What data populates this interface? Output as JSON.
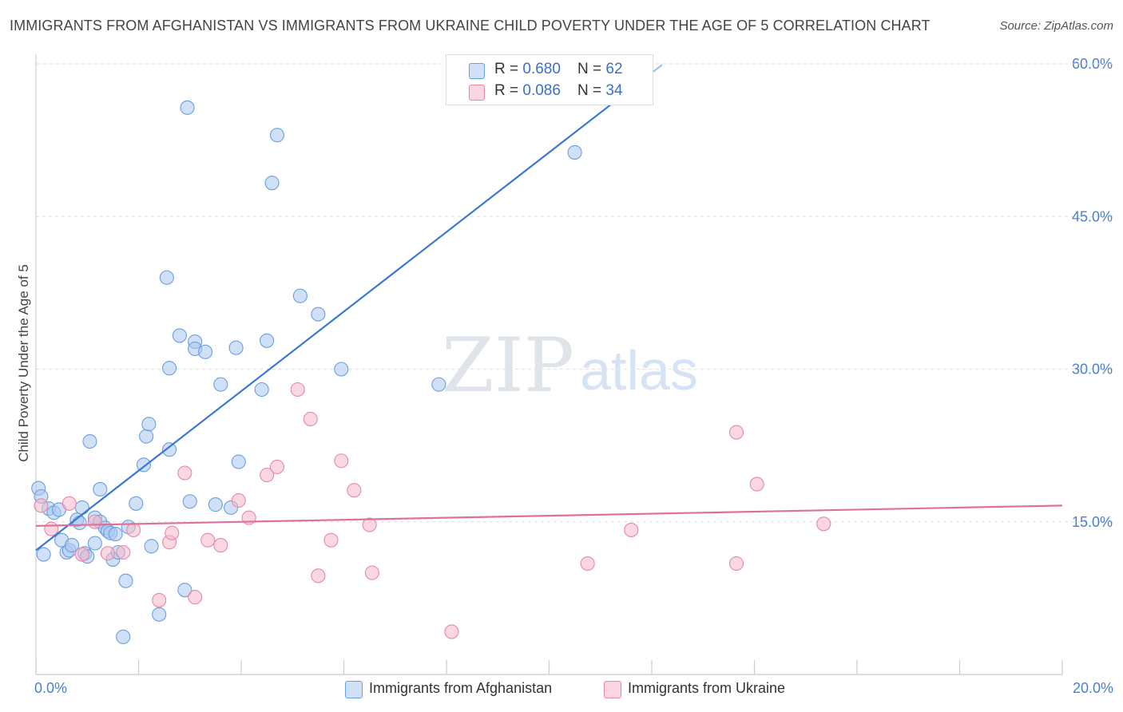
{
  "title": "IMMIGRANTS FROM AFGHANISTAN VS IMMIGRANTS FROM UKRAINE CHILD POVERTY UNDER THE AGE OF 5 CORRELATION CHART",
  "source": "Source: ZipAtlas.com",
  "watermark": {
    "zip": "ZIP",
    "atlas": "atlas"
  },
  "legend_top": {
    "rows": [
      {
        "r_label": "R = ",
        "r_value": "0.680",
        "n_label": "N = ",
        "n_value": "62",
        "color": "#a9c8f0"
      },
      {
        "r_label": "R = ",
        "r_value": "0.086",
        "n_label": "N = ",
        "n_value": "34",
        "color": "#f6b6c8"
      }
    ]
  },
  "colors": {
    "afghanistan_fill": "#a9c8f0",
    "afghanistan_stroke": "#6a9ee0",
    "afghanistan_line": "#3a78d4",
    "ukraine_fill": "#f6b6c8",
    "ukraine_stroke": "#e48aa6",
    "ukraine_line": "#e0709a",
    "grid": "#dddddd",
    "tick_text": "#4a7fd0"
  },
  "chart_data": {
    "type": "scatter",
    "title": "IMMIGRANTS FROM AFGHANISTAN VS IMMIGRANTS FROM UKRAINE CHILD POVERTY UNDER THE AGE OF 5 CORRELATION CHART",
    "xlabel": "",
    "ylabel": "Child Poverty Under the Age of 5",
    "xlim": [
      0,
      20
    ],
    "ylim": [
      0,
      60
    ],
    "x_tick_labels": [
      "0.0%",
      "20.0%"
    ],
    "y_ticks": [
      15,
      30,
      45,
      60
    ],
    "y_tick_labels": [
      "15.0%",
      "30.0%",
      "45.0%",
      "60.0%"
    ],
    "grid": true,
    "legend_position": "bottom",
    "series": [
      {
        "name": "Immigrants from Afghanistan",
        "r": 0.68,
        "n": 62,
        "trend": {
          "x": [
            0,
            12.2
          ],
          "y": [
            12.2,
            59.9
          ],
          "dashed_from_x": 11.2
        },
        "points": [
          [
            0.05,
            18.3
          ],
          [
            0.1,
            17.5
          ],
          [
            0.15,
            11.8
          ],
          [
            0.25,
            16.3
          ],
          [
            0.35,
            15.9
          ],
          [
            0.45,
            16.2
          ],
          [
            0.5,
            13.2
          ],
          [
            0.6,
            12.0
          ],
          [
            0.65,
            12.2
          ],
          [
            0.7,
            12.7
          ],
          [
            0.8,
            15.2
          ],
          [
            0.85,
            14.9
          ],
          [
            0.9,
            16.4
          ],
          [
            0.95,
            11.9
          ],
          [
            1.0,
            11.6
          ],
          [
            1.05,
            22.9
          ],
          [
            1.15,
            15.4
          ],
          [
            1.15,
            12.9
          ],
          [
            1.25,
            15.0
          ],
          [
            1.25,
            18.2
          ],
          [
            1.35,
            14.4
          ],
          [
            1.4,
            14.1
          ],
          [
            1.45,
            13.9
          ],
          [
            1.5,
            11.3
          ],
          [
            1.55,
            13.8
          ],
          [
            1.6,
            12.0
          ],
          [
            1.7,
            3.7
          ],
          [
            1.75,
            9.2
          ],
          [
            1.8,
            14.5
          ],
          [
            1.95,
            16.8
          ],
          [
            2.1,
            20.6
          ],
          [
            2.15,
            23.4
          ],
          [
            2.2,
            24.6
          ],
          [
            2.25,
            12.6
          ],
          [
            2.4,
            5.9
          ],
          [
            2.55,
            39.0
          ],
          [
            2.6,
            22.1
          ],
          [
            2.6,
            30.1
          ],
          [
            2.8,
            33.3
          ],
          [
            2.9,
            8.3
          ],
          [
            2.95,
            55.7
          ],
          [
            3.0,
            17.0
          ],
          [
            3.1,
            32.7
          ],
          [
            3.1,
            32.0
          ],
          [
            3.3,
            31.7
          ],
          [
            3.5,
            16.7
          ],
          [
            3.6,
            28.5
          ],
          [
            3.8,
            16.4
          ],
          [
            3.9,
            32.1
          ],
          [
            3.95,
            20.9
          ],
          [
            4.4,
            28.0
          ],
          [
            4.5,
            32.8
          ],
          [
            4.6,
            48.3
          ],
          [
            4.7,
            53.0
          ],
          [
            5.15,
            37.2
          ],
          [
            5.5,
            35.4
          ],
          [
            5.95,
            30.0
          ],
          [
            7.85,
            28.5
          ],
          [
            10.5,
            51.3
          ]
        ]
      },
      {
        "name": "Immigrants from Ukraine",
        "r": 0.086,
        "n": 34,
        "trend": {
          "x": [
            0,
            20
          ],
          "y": [
            14.6,
            16.6
          ]
        },
        "points": [
          [
            0.1,
            16.6
          ],
          [
            0.3,
            14.3
          ],
          [
            0.65,
            16.8
          ],
          [
            0.9,
            11.8
          ],
          [
            1.15,
            15.0
          ],
          [
            1.4,
            11.9
          ],
          [
            1.7,
            12.0
          ],
          [
            1.9,
            14.2
          ],
          [
            2.4,
            7.3
          ],
          [
            2.6,
            13.0
          ],
          [
            2.65,
            13.9
          ],
          [
            2.9,
            19.8
          ],
          [
            3.1,
            7.6
          ],
          [
            3.35,
            13.2
          ],
          [
            3.6,
            12.7
          ],
          [
            3.95,
            17.1
          ],
          [
            4.15,
            15.4
          ],
          [
            4.5,
            19.6
          ],
          [
            4.7,
            20.4
          ],
          [
            5.1,
            28.0
          ],
          [
            5.35,
            25.1
          ],
          [
            5.5,
            9.7
          ],
          [
            5.75,
            13.2
          ],
          [
            5.95,
            21.0
          ],
          [
            6.2,
            18.1
          ],
          [
            6.5,
            14.7
          ],
          [
            6.55,
            10.0
          ],
          [
            8.1,
            4.2
          ],
          [
            10.75,
            10.9
          ],
          [
            11.6,
            14.2
          ],
          [
            13.65,
            10.9
          ],
          [
            13.65,
            23.8
          ],
          [
            14.05,
            18.7
          ],
          [
            15.35,
            14.8
          ]
        ]
      }
    ]
  }
}
